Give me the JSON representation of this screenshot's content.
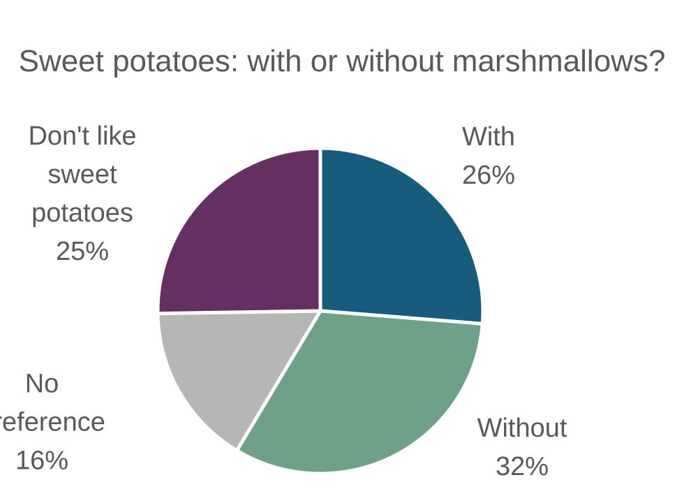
{
  "chart_data": {
    "type": "pie",
    "title": "Sweet potatoes: with or without marshmallows?",
    "slices": [
      {
        "label": "With",
        "value": 26,
        "display": "26%",
        "color": "#185C7D"
      },
      {
        "label": "Without",
        "value": 32,
        "display": "32%",
        "color": "#6FA188"
      },
      {
        "label": "No preference",
        "value": 16,
        "display": "16%",
        "color": "#B6B6B6"
      },
      {
        "label": "Don't like sweet potatoes",
        "value": 25,
        "display": "25%",
        "color": "#662F62"
      }
    ],
    "start_angle_deg": 0,
    "direction": "clockwise",
    "legend": "none"
  }
}
